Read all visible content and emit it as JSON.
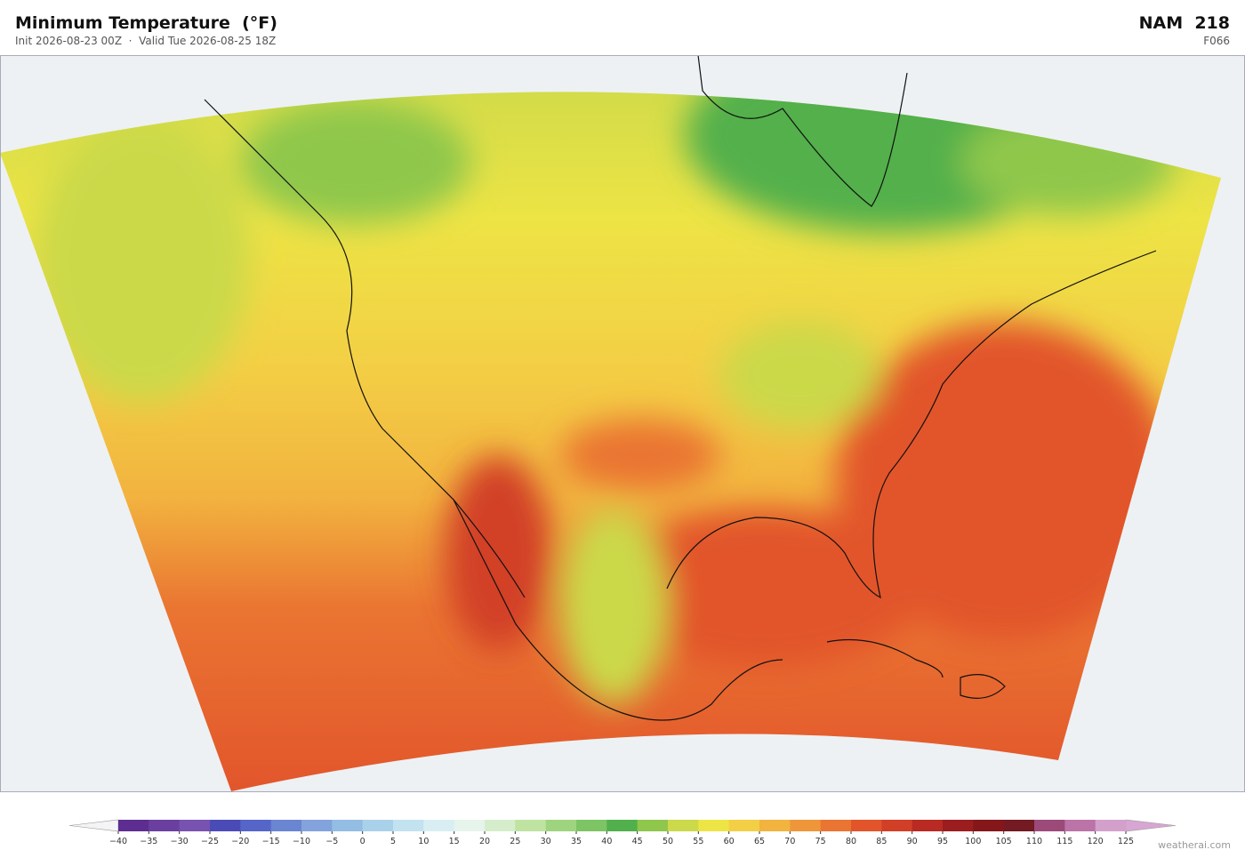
{
  "header": {
    "title": "Minimum Temperature  (°F)",
    "subtitle": "Init 2026-08-23 00Z  ·  Valid Tue 2026-08-25 18Z",
    "model": "NAM  218",
    "forecast_hour": "F066"
  },
  "colorbar": {
    "ticks": [
      {
        "value": -40,
        "label": "−40"
      },
      {
        "value": -35,
        "label": "−35"
      },
      {
        "value": -30,
        "label": "−30"
      },
      {
        "value": -25,
        "label": "−25"
      },
      {
        "value": -20,
        "label": "−20"
      },
      {
        "value": -15,
        "label": "−15"
      },
      {
        "value": -10,
        "label": "−10"
      },
      {
        "value": -5,
        "label": "−5"
      },
      0,
      5,
      10,
      15,
      20,
      25,
      30,
      35,
      40,
      45,
      50,
      55,
      60,
      65,
      70,
      75,
      80,
      85,
      90,
      95,
      100,
      105,
      110,
      115,
      120,
      125
    ],
    "colors": [
      "#5e2d91",
      "#6b3fa0",
      "#7852b0",
      "#4b4bb8",
      "#5566c8",
      "#6a85d2",
      "#82a3dc",
      "#93bde3",
      "#a9d2ea",
      "#c2e2f0",
      "#d8eef3",
      "#e6f4ec",
      "#d6edcb",
      "#bfe3a0",
      "#9fd47f",
      "#7dc464",
      "#52b04c",
      "#8fc74c",
      "#cbd94a",
      "#ede445",
      "#f3cf45",
      "#f2b33f",
      "#ef963a",
      "#ea7532",
      "#e2552b",
      "#d23f27",
      "#b82a22",
      "#9b1d1e",
      "#851619",
      "#731a22",
      "#9c4a7a",
      "#bb73a8",
      "#d3a0cc"
    ],
    "under_color": "#f4f4f6",
    "over_color": "#d8a6d2"
  },
  "watermark": "weatherai.com"
}
